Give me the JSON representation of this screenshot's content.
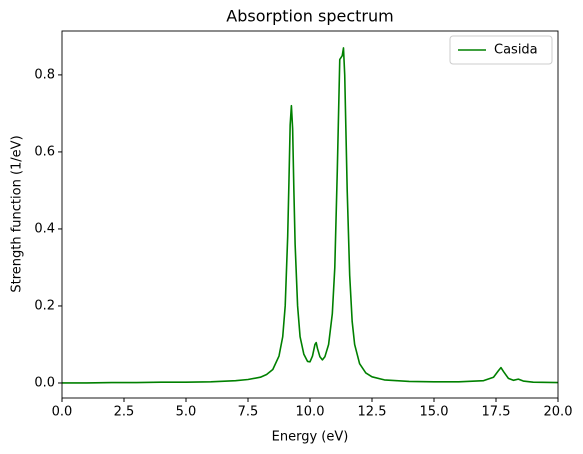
{
  "chart_data": {
    "type": "line",
    "title": "Absorption spectrum",
    "xlabel": "Energy (eV)",
    "ylabel": "Strength function (1/eV)",
    "x": [
      0,
      1,
      2,
      3,
      4,
      5,
      6,
      7,
      7.5,
      8,
      8.25,
      8.5,
      8.75,
      8.9,
      9.0,
      9.1,
      9.15,
      9.2,
      9.25,
      9.3,
      9.35,
      9.4,
      9.5,
      9.6,
      9.75,
      9.9,
      10.0,
      10.1,
      10.2,
      10.25,
      10.3,
      10.4,
      10.5,
      10.6,
      10.75,
      10.9,
      11.0,
      11.1,
      11.2,
      11.3,
      11.35,
      11.4,
      11.5,
      11.6,
      11.7,
      11.8,
      12.0,
      12.25,
      12.5,
      13,
      14,
      15,
      16,
      17,
      17.4,
      17.6,
      17.7,
      17.8,
      18.0,
      18.2,
      18.4,
      18.6,
      19,
      20
    ],
    "series": [
      {
        "name": "Casida",
        "color": "#008000",
        "values": [
          0,
          0,
          0.001,
          0.001,
          0.002,
          0.002,
          0.003,
          0.006,
          0.009,
          0.015,
          0.022,
          0.035,
          0.07,
          0.12,
          0.2,
          0.38,
          0.52,
          0.67,
          0.72,
          0.66,
          0.5,
          0.36,
          0.2,
          0.12,
          0.075,
          0.056,
          0.055,
          0.07,
          0.1,
          0.105,
          0.09,
          0.068,
          0.06,
          0.068,
          0.1,
          0.18,
          0.3,
          0.55,
          0.84,
          0.85,
          0.87,
          0.8,
          0.5,
          0.28,
          0.16,
          0.1,
          0.05,
          0.026,
          0.016,
          0.008,
          0.004,
          0.003,
          0.003,
          0.006,
          0.015,
          0.032,
          0.04,
          0.03,
          0.012,
          0.007,
          0.01,
          0.005,
          0.002,
          0.001
        ]
      }
    ],
    "xlim": [
      0,
      20
    ],
    "ylim": [
      -0.039,
      0.914
    ],
    "xticks": [
      {
        "value": 0,
        "label": "0.0"
      },
      {
        "value": 2.5,
        "label": "2.5"
      },
      {
        "value": 5,
        "label": "5.0"
      },
      {
        "value": 7.5,
        "label": "7.5"
      },
      {
        "value": 10,
        "label": "10.0"
      },
      {
        "value": 12.5,
        "label": "12.5"
      },
      {
        "value": 15,
        "label": "15.0"
      },
      {
        "value": 17.5,
        "label": "17.5"
      },
      {
        "value": 20,
        "label": "20.0"
      }
    ],
    "yticks": [
      {
        "value": 0,
        "label": "0.0"
      },
      {
        "value": 0.2,
        "label": "0.2"
      },
      {
        "value": 0.4,
        "label": "0.4"
      },
      {
        "value": 0.6,
        "label": "0.6"
      },
      {
        "value": 0.8,
        "label": "0.8"
      }
    ],
    "legend": "upper right"
  }
}
